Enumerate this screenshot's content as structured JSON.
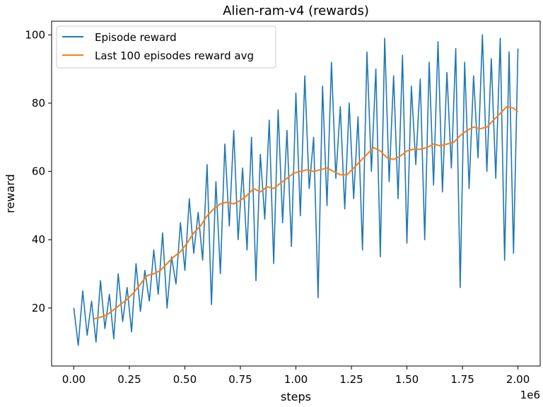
{
  "chart_data": {
    "type": "line",
    "title": "Alien-ram-v4 (rewards)",
    "xlabel": "steps",
    "ylabel": "reward",
    "x_offset_label": "1e6",
    "xlim": [
      -0.1,
      2.1
    ],
    "ylim": [
      3,
      104
    ],
    "x_ticks": [
      0.0,
      0.25,
      0.5,
      0.75,
      1.0,
      1.25,
      1.5,
      1.75,
      2.0
    ],
    "x_tick_labels": [
      "0.00",
      "0.25",
      "0.50",
      "0.75",
      "1.00",
      "1.25",
      "1.50",
      "1.75",
      "2.00"
    ],
    "y_ticks": [
      20,
      40,
      60,
      80,
      100
    ],
    "y_tick_labels": [
      "20",
      "40",
      "60",
      "80",
      "100"
    ],
    "grid": false,
    "legend_position": "top-left",
    "series": [
      {
        "name": "Episode reward",
        "color": "#1f77b4",
        "x": [
          0.0,
          0.02,
          0.04,
          0.06,
          0.08,
          0.1,
          0.12,
          0.14,
          0.16,
          0.18,
          0.2,
          0.22,
          0.24,
          0.26,
          0.28,
          0.3,
          0.32,
          0.34,
          0.36,
          0.38,
          0.4,
          0.42,
          0.44,
          0.46,
          0.48,
          0.5,
          0.52,
          0.54,
          0.56,
          0.58,
          0.6,
          0.62,
          0.64,
          0.66,
          0.68,
          0.7,
          0.72,
          0.74,
          0.76,
          0.78,
          0.8,
          0.82,
          0.84,
          0.86,
          0.88,
          0.9,
          0.92,
          0.94,
          0.96,
          0.98,
          1.0,
          1.02,
          1.04,
          1.06,
          1.08,
          1.1,
          1.12,
          1.14,
          1.16,
          1.18,
          1.2,
          1.22,
          1.24,
          1.26,
          1.28,
          1.3,
          1.32,
          1.34,
          1.36,
          1.38,
          1.4,
          1.42,
          1.44,
          1.46,
          1.48,
          1.5,
          1.52,
          1.54,
          1.56,
          1.58,
          1.6,
          1.62,
          1.64,
          1.66,
          1.68,
          1.7,
          1.72,
          1.74,
          1.76,
          1.78,
          1.8,
          1.82,
          1.84,
          1.86,
          1.88,
          1.9,
          1.92,
          1.94,
          1.96,
          1.98,
          2.0
        ],
        "y": [
          20,
          9,
          25,
          12,
          22,
          10,
          28,
          14,
          24,
          11,
          30,
          16,
          26,
          13,
          33,
          19,
          31,
          22,
          37,
          24,
          42,
          20,
          35,
          27,
          45,
          31,
          52,
          36,
          48,
          34,
          62,
          21,
          57,
          30,
          68,
          44,
          72,
          40,
          61,
          37,
          70,
          28,
          65,
          46,
          75,
          33,
          78,
          45,
          72,
          38,
          83,
          47,
          88,
          55,
          70,
          23,
          85,
          50,
          92,
          58,
          79,
          49,
          80,
          52,
          76,
          37,
          95,
          60,
          90,
          35,
          99,
          57,
          88,
          52,
          94,
          39,
          85,
          62,
          87,
          40,
          92,
          56,
          98,
          54,
          89,
          61,
          96,
          26,
          92,
          55,
          88,
          64,
          100,
          60,
          93,
          58,
          99,
          34,
          95,
          36,
          96
        ]
      },
      {
        "name": "Last 100 episodes reward avg",
        "color": "#ff7f0e",
        "x": [
          0.09,
          0.12,
          0.15,
          0.18,
          0.21,
          0.24,
          0.27,
          0.3,
          0.33,
          0.36,
          0.39,
          0.42,
          0.45,
          0.48,
          0.51,
          0.54,
          0.57,
          0.6,
          0.63,
          0.66,
          0.69,
          0.72,
          0.75,
          0.78,
          0.81,
          0.84,
          0.87,
          0.9,
          0.93,
          0.96,
          0.99,
          1.02,
          1.05,
          1.08,
          1.11,
          1.14,
          1.17,
          1.2,
          1.23,
          1.26,
          1.29,
          1.32,
          1.35,
          1.38,
          1.41,
          1.44,
          1.47,
          1.5,
          1.53,
          1.56,
          1.59,
          1.62,
          1.65,
          1.68,
          1.71,
          1.74,
          1.77,
          1.8,
          1.83,
          1.86,
          1.89,
          1.92,
          1.95,
          1.98,
          2.0
        ],
        "y": [
          16.8,
          17.3,
          18.0,
          19.5,
          21.0,
          22.5,
          24.5,
          27.0,
          29.5,
          30.0,
          31.0,
          33.0,
          35.0,
          36.5,
          39.0,
          42.0,
          44.0,
          47.0,
          49.0,
          50.5,
          51.0,
          50.5,
          51.5,
          53.0,
          55.0,
          54.0,
          55.5,
          55.0,
          56.5,
          58.0,
          59.5,
          60.0,
          60.5,
          60.0,
          60.5,
          61.0,
          60.0,
          59.0,
          59.0,
          61.0,
          63.0,
          65.0,
          67.0,
          66.0,
          64.0,
          63.5,
          64.5,
          66.0,
          66.5,
          66.5,
          67.0,
          68.0,
          67.5,
          68.0,
          68.5,
          70.5,
          72.0,
          73.0,
          72.5,
          73.0,
          75.0,
          77.0,
          79.0,
          78.5,
          77.5
        ]
      }
    ]
  }
}
